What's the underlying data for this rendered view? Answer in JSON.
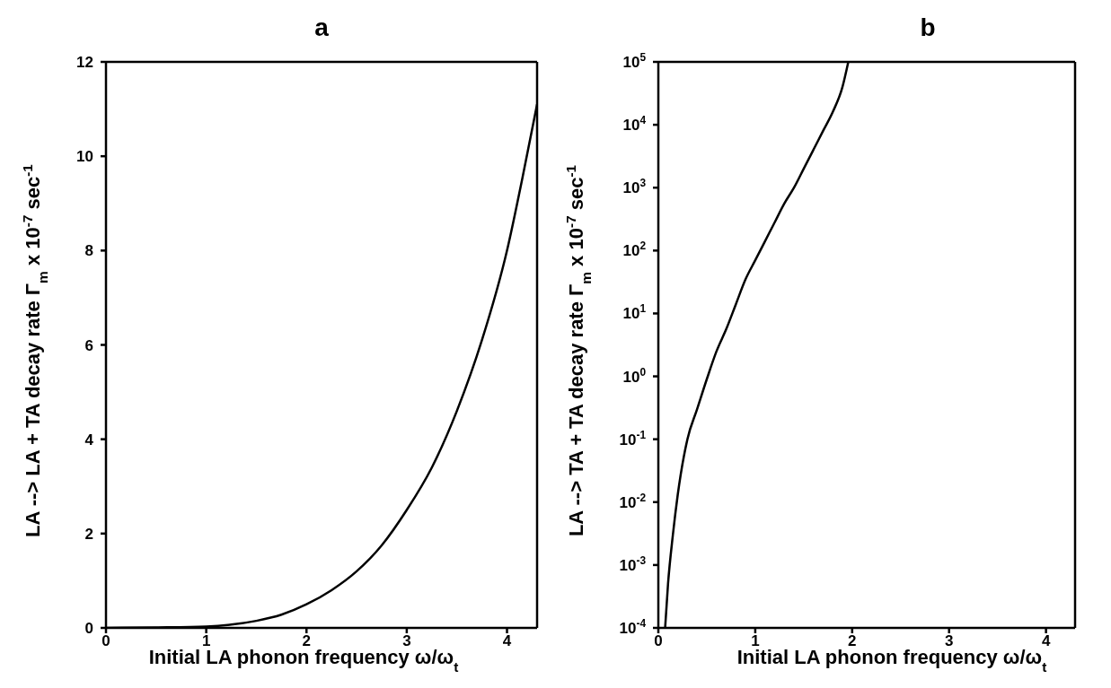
{
  "chart_data": [
    {
      "type": "line",
      "title": "a",
      "xlabel": "Initial LA phonon frequency    ω/ω$_{t}$",
      "ylabel": "LA --> LA + TA decay rate   Γ$_{m}$ x 10$^{-7}$ sec$^{-1}$",
      "x": [
        0,
        0.5,
        1,
        1.25,
        1.5,
        1.75,
        2,
        2.25,
        2.5,
        2.75,
        3,
        3.25,
        3.5,
        3.75,
        4,
        4.15,
        4.3
      ],
      "series": [
        {
          "color": "#000000",
          "values": [
            0,
            0.01,
            0.03,
            0.07,
            0.15,
            0.28,
            0.5,
            0.8,
            1.2,
            1.75,
            2.5,
            3.4,
            4.6,
            6.1,
            8.0,
            9.5,
            11.1
          ]
        }
      ],
      "xlim": [
        0,
        4.3
      ],
      "xticks": [
        0,
        1,
        2,
        3,
        4
      ],
      "ylim": [
        0,
        12
      ],
      "yticks": [
        0,
        2,
        4,
        6,
        8,
        10,
        12
      ],
      "grid": false,
      "legend": false,
      "marker": "none",
      "line_style": "solid"
    },
    {
      "type": "line",
      "title": "b",
      "xlabel": "Initial LA phonon frequency ω/ω$_{t}$",
      "ylabel": "LA --> TA + TA decay rate   Γ$_{m}$ x 10$^{-7}$ sec$^{-1}$",
      "x": [
        0.07,
        0.1,
        0.15,
        0.2,
        0.3,
        0.4,
        0.5,
        0.6,
        0.7,
        0.8,
        0.9,
        1.0,
        1.1,
        1.2,
        1.3,
        1.4,
        1.5,
        1.6,
        1.7,
        1.8,
        1.9,
        1.96
      ],
      "series": [
        {
          "color": "#000000",
          "values": [
            0.0001,
            0.0005,
            0.003,
            0.013,
            0.1,
            0.3,
            0.9,
            2.5,
            5.6,
            14,
            35,
            70,
            140,
            280,
            560,
            1000,
            2000,
            4000,
            8000,
            16000,
            40000,
            100000
          ]
        }
      ],
      "xlim": [
        0,
        4.3
      ],
      "xticks": [
        0,
        1,
        2,
        3,
        4
      ],
      "ylim": [
        0.0001,
        100000
      ],
      "log": "y",
      "yticks": [
        {
          "value": 0.0001,
          "label": "10$^{-4}$"
        },
        {
          "value": 0.001,
          "label": "10$^{-3}$"
        },
        {
          "value": 0.01,
          "label": "10$^{-2}$"
        },
        {
          "value": 0.1,
          "label": "10$^{-1}$"
        },
        {
          "value": 1,
          "label": "10$^{0}$"
        },
        {
          "value": 10,
          "label": "10$^{1}$"
        },
        {
          "value": 100,
          "label": "10$^{2}$"
        },
        {
          "value": 1000,
          "label": "10$^{3}$"
        },
        {
          "value": 10000,
          "label": "10$^{4}$"
        },
        {
          "value": 100000,
          "label": "10$^{5}$"
        }
      ],
      "grid": false,
      "legend": false,
      "marker": "none",
      "line_style": "solid"
    }
  ]
}
